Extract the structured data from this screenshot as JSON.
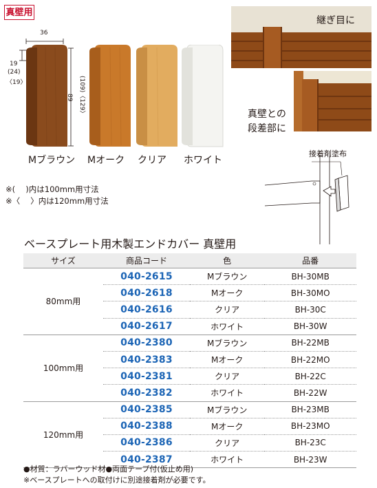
{
  "badge": "真壁用",
  "dimensions": {
    "width": "36",
    "thickness": "19",
    "thickness_100": "(24)",
    "thickness_120": "〈19〉",
    "height": "89",
    "height_alt": "(109)〈129〉"
  },
  "products": [
    {
      "name": "Mブラウン",
      "color": "#8a4b1d"
    },
    {
      "name": "Mオーク",
      "color": "#c9792a"
    },
    {
      "name": "クリア",
      "color": "#e2ac5f"
    },
    {
      "name": "ホワイト",
      "color": "#f2f2ee"
    }
  ],
  "photo_labels": {
    "joint": "継ぎ目に",
    "step_line1": "真壁との",
    "step_line2": "段差部に",
    "adhesive": "接着剤塗布"
  },
  "notes": {
    "note1": "※(　 )内は100mm用寸法",
    "note2": "※〈　 〉内は120mm用寸法"
  },
  "table": {
    "title": "ベースプレート用木製エンドカバー 真壁用",
    "headers": [
      "サイズ",
      "商品コード",
      "色",
      "品番"
    ],
    "groups": [
      {
        "size": "80mm用",
        "rows": [
          {
            "code": "040-2615",
            "color": "Mブラウン",
            "part": "BH-30MB"
          },
          {
            "code": "040-2618",
            "color": "Mオーク",
            "part": "BH-30MO"
          },
          {
            "code": "040-2616",
            "color": "クリア",
            "part": "BH-30C"
          },
          {
            "code": "040-2617",
            "color": "ホワイト",
            "part": "BH-30W"
          }
        ]
      },
      {
        "size": "100mm用",
        "rows": [
          {
            "code": "040-2380",
            "color": "Mブラウン",
            "part": "BH-22MB"
          },
          {
            "code": "040-2383",
            "color": "Mオーク",
            "part": "BH-22MO"
          },
          {
            "code": "040-2381",
            "color": "クリア",
            "part": "BH-22C"
          },
          {
            "code": "040-2382",
            "color": "ホワイト",
            "part": "BH-22W"
          }
        ]
      },
      {
        "size": "120mm用",
        "rows": [
          {
            "code": "040-2385",
            "color": "Mブラウン",
            "part": "BH-23MB"
          },
          {
            "code": "040-2388",
            "color": "Mオーク",
            "part": "BH-23MO"
          },
          {
            "code": "040-2386",
            "color": "クリア",
            "part": "BH-23C"
          },
          {
            "code": "040-2387",
            "color": "ホワイト",
            "part": "BH-23W"
          }
        ]
      }
    ]
  },
  "footer": {
    "line1": "●材質：ラバーウッド材●両面テープ付(仮止め用)",
    "line2": "※ベースプレートへの取付けに別途接着剤が必要です。"
  }
}
